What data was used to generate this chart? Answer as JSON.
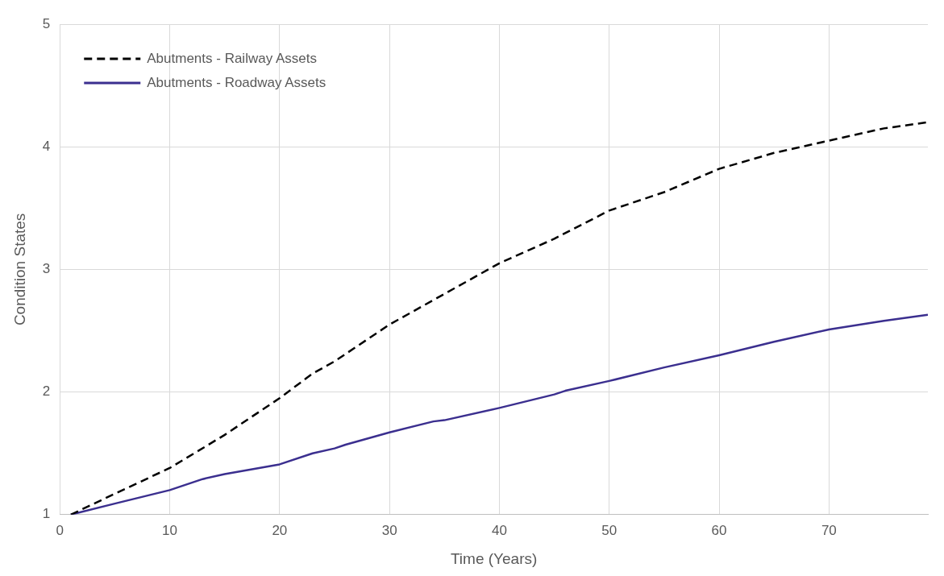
{
  "chart_data": {
    "type": "line",
    "xlabel": "Time (Years)",
    "ylabel": "Condition States",
    "xlim": [
      0,
      79
    ],
    "xticks": [
      0,
      10,
      20,
      30,
      40,
      50,
      60,
      70
    ],
    "ylim": [
      1,
      5
    ],
    "yticks": [
      1,
      2,
      3,
      4,
      5
    ],
    "grid": true,
    "legend": "top left",
    "marker": "none",
    "series": [
      {
        "name": "Abutments - Railway Assets",
        "color": "#000000",
        "line_style": "dashed",
        "x": [
          1,
          5,
          10,
          15,
          20,
          23,
          25,
          30,
          35,
          40,
          42,
          45,
          50,
          55,
          60,
          65,
          70,
          75,
          79
        ],
        "values": [
          1.0,
          1.17,
          1.38,
          1.65,
          1.95,
          2.15,
          2.25,
          2.55,
          2.8,
          3.05,
          3.13,
          3.25,
          3.48,
          3.63,
          3.82,
          3.95,
          4.05,
          4.15,
          4.2
        ]
      },
      {
        "name": "Abutments - Roadway Assets",
        "color": "#3b2f8f",
        "line_style": "solid",
        "x": [
          1,
          5,
          10,
          13,
          15,
          20,
          23,
          25,
          26,
          30,
          34,
          35,
          40,
          45,
          46,
          50,
          55,
          60,
          65,
          70,
          75,
          79
        ],
        "values": [
          1.0,
          1.09,
          1.2,
          1.29,
          1.33,
          1.41,
          1.5,
          1.54,
          1.57,
          1.67,
          1.76,
          1.77,
          1.87,
          1.98,
          2.01,
          2.09,
          2.2,
          2.3,
          2.41,
          2.51,
          2.58,
          2.63
        ]
      }
    ]
  }
}
